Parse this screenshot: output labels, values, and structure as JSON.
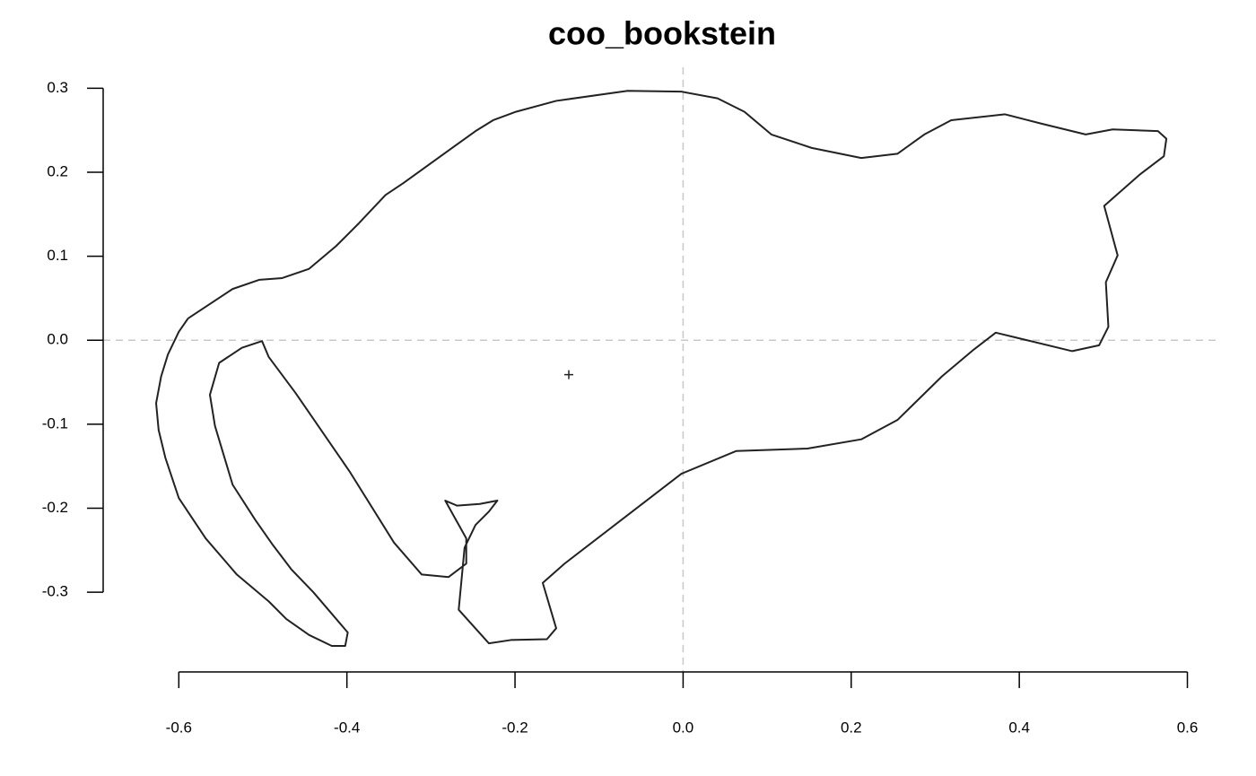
{
  "chart_data": {
    "type": "line",
    "title": "coo_bookstein",
    "x": [
      -0.589,
      -0.536,
      -0.504,
      -0.477,
      -0.445,
      -0.413,
      -0.386,
      -0.354,
      -0.333,
      -0.247,
      -0.226,
      -0.199,
      -0.151,
      -0.066,
      -0.002,
      0.041,
      0.073,
      0.105,
      0.153,
      0.212,
      0.255,
      0.287,
      0.319,
      0.383,
      0.426,
      0.479,
      0.511,
      0.565,
      0.575,
      0.572,
      0.543,
      0.501,
      0.517,
      0.503,
      0.506,
      0.495,
      0.463,
      0.372,
      0.346,
      0.308,
      0.255,
      0.212,
      0.148,
      0.063,
      -0.002,
      -0.141,
      -0.167,
      -0.151,
      -0.162,
      -0.205,
      -0.231,
      -0.267,
      -0.26,
      -0.247,
      -0.231,
      -0.221,
      -0.242,
      -0.269,
      -0.283,
      -0.258,
      -0.258,
      -0.279,
      -0.311,
      -0.344,
      -0.397,
      -0.461,
      -0.493,
      -0.501,
      -0.525,
      -0.552,
      -0.563,
      -0.557,
      -0.536,
      -0.509,
      -0.488,
      -0.466,
      -0.44,
      -0.399,
      -0.402,
      -0.418,
      -0.445,
      -0.472,
      -0.493,
      -0.531,
      -0.568,
      -0.6,
      -0.616,
      -0.624,
      -0.627,
      -0.621,
      -0.613,
      -0.6,
      -0.589
    ],
    "values": [
      0.026,
      0.061,
      0.072,
      0.074,
      0.085,
      0.112,
      0.139,
      0.173,
      0.187,
      0.249,
      0.262,
      0.272,
      0.285,
      0.297,
      0.296,
      0.288,
      0.272,
      0.245,
      0.229,
      0.217,
      0.222,
      0.245,
      0.262,
      0.269,
      0.258,
      0.245,
      0.251,
      0.249,
      0.24,
      0.219,
      0.197,
      0.16,
      0.101,
      0.069,
      0.016,
      -0.006,
      -0.013,
      0.009,
      -0.011,
      -0.043,
      -0.095,
      -0.118,
      -0.129,
      -0.132,
      -0.159,
      -0.266,
      -0.289,
      -0.343,
      -0.356,
      -0.357,
      -0.361,
      -0.321,
      -0.247,
      -0.22,
      -0.204,
      -0.191,
      -0.195,
      -0.197,
      -0.191,
      -0.236,
      -0.266,
      -0.282,
      -0.279,
      -0.241,
      -0.156,
      -0.063,
      -0.02,
      -0.001,
      -0.009,
      -0.027,
      -0.065,
      -0.102,
      -0.172,
      -0.214,
      -0.244,
      -0.273,
      -0.3,
      -0.348,
      -0.364,
      -0.364,
      -0.351,
      -0.332,
      -0.311,
      -0.279,
      -0.236,
      -0.188,
      -0.14,
      -0.107,
      -0.075,
      -0.043,
      -0.017,
      0.01,
      0.026
    ],
    "color": "#222222",
    "centroid": {
      "x": -0.136,
      "y": -0.041
    },
    "xlim": [
      -0.69,
      0.64
    ],
    "ylim": [
      -0.395,
      0.325
    ],
    "xticks": [
      -0.6,
      -0.4,
      -0.2,
      {
        "value": 0,
        "label": "0.0"
      },
      0.2,
      0.4,
      0.6
    ],
    "yticks": [
      0.3,
      0.2,
      0.1,
      {
        "value": 0,
        "label": "0.0"
      },
      -0.1,
      -0.2,
      -0.3
    ],
    "reference_lines": true
  }
}
